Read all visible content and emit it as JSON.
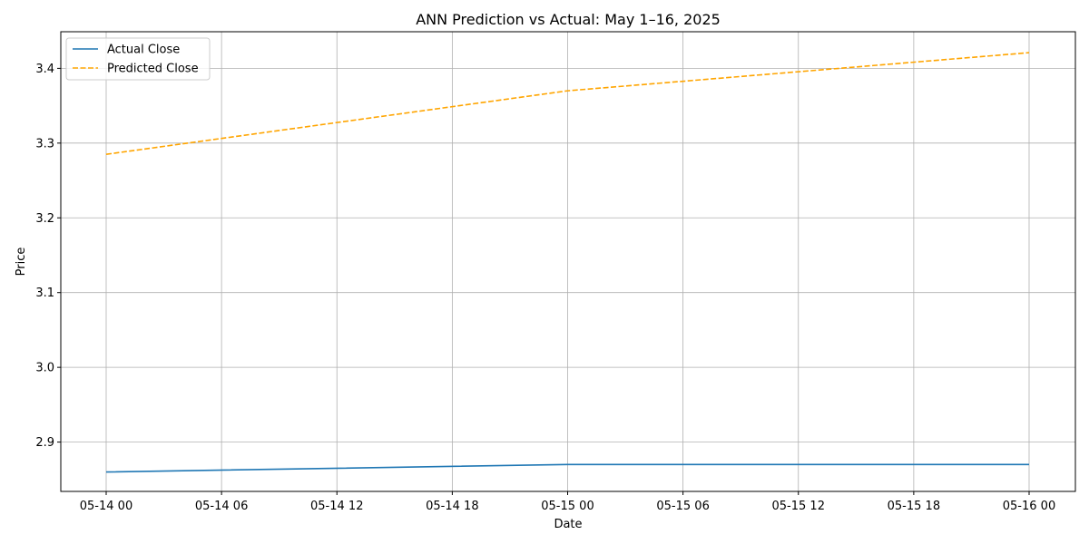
{
  "chart_data": {
    "type": "line",
    "title": "ANN Prediction vs Actual: May 1–16, 2025",
    "xlabel": "Date",
    "ylabel": "Price",
    "x": [
      "05-14 00",
      "05-15 00",
      "05-16 00"
    ],
    "series": [
      {
        "name": "Actual Close",
        "values": [
          2.86,
          2.87,
          2.87
        ],
        "color": "#1f77b4",
        "style": "solid"
      },
      {
        "name": "Predicted Close",
        "values": [
          3.285,
          3.37,
          3.421
        ],
        "color": "#ffa500",
        "style": "dashed"
      }
    ],
    "x_ticks": [
      "05-14 00",
      "05-14 06",
      "05-14 12",
      "05-14 18",
      "05-15 00",
      "05-15 06",
      "05-15 12",
      "05-15 18",
      "05-16 00"
    ],
    "y_ticks": [
      "2.9",
      "3.0",
      "3.1",
      "3.2",
      "3.3",
      "3.4"
    ],
    "ylim": [
      2.834,
      3.449
    ],
    "grid": true,
    "legend_position": "top-left"
  }
}
